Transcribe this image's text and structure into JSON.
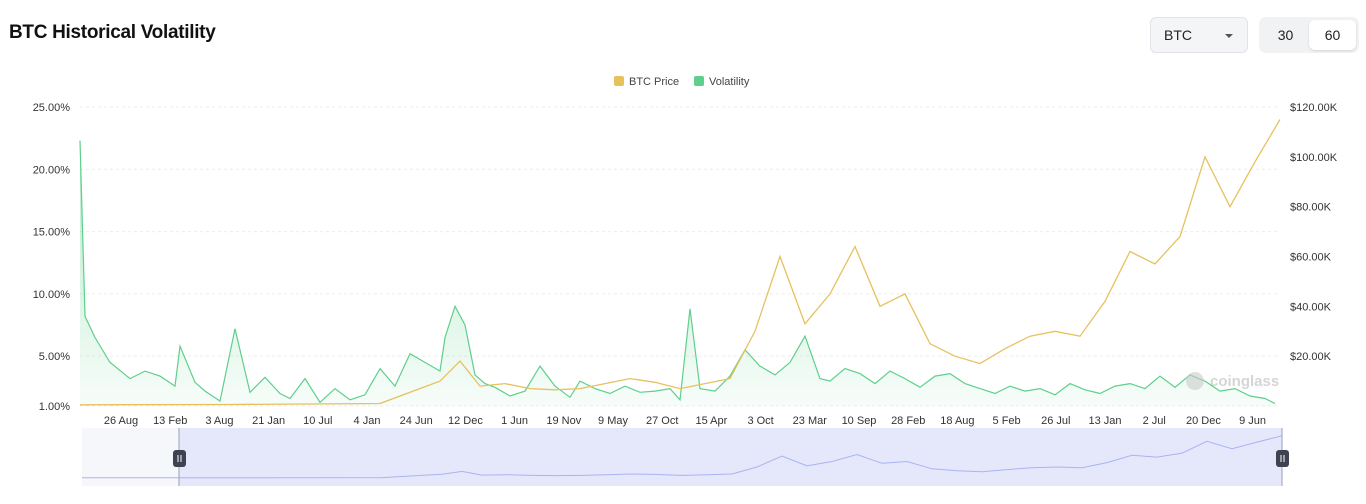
{
  "header": {
    "title": "BTC Historical Volatility",
    "coin_select": {
      "value": "BTC"
    },
    "window_options": [
      "30",
      "60"
    ],
    "window_selected": "60"
  },
  "watermark": "coinglass",
  "colors": {
    "price": "#e6c15e",
    "volatility": "#5ecf8c",
    "navigator_fill": "#dfe2fb",
    "navigator_line": "#a9b4f2"
  },
  "chart_data": {
    "type": "line",
    "title": "",
    "legend": [
      "BTC Price",
      "Volatility"
    ],
    "legend_position": "top-center",
    "grid": true,
    "x_ticks": [
      "26 Aug",
      "13 Feb",
      "3 Aug",
      "21 Jan",
      "10 Jul",
      "4 Jan",
      "24 Jun",
      "12 Dec",
      "1 Jun",
      "19 Nov",
      "9 May",
      "27 Oct",
      "15 Apr",
      "3 Oct",
      "23 Mar",
      "10 Sep",
      "28 Feb",
      "18 Aug",
      "5 Feb",
      "26 Jul",
      "13 Jan",
      "2 Jul",
      "20 Dec",
      "9 Jun"
    ],
    "y_left": {
      "ticks": [
        "1.00%",
        "5.00%",
        "10.00%",
        "15.00%",
        "20.00%",
        "25.00%"
      ],
      "range": [
        1,
        25
      ],
      "unit": "%"
    },
    "y_right": {
      "ticks": [
        "$20.00K",
        "$40.00K",
        "$60.00K",
        "$80.00K",
        "$100.00K",
        "$120.00K"
      ],
      "range": [
        0,
        120000
      ]
    },
    "series": [
      {
        "name": "Volatility",
        "axis": "left",
        "type": "area",
        "x": [
          0,
          0.1,
          0.3,
          0.6,
          1,
          1.3,
          1.6,
          1.9,
          2,
          2.3,
          2.5,
          2.8,
          3.1,
          3.4,
          3.7,
          4,
          4.2,
          4.5,
          4.8,
          5.1,
          5.4,
          5.7,
          6,
          6.3,
          6.6,
          6.9,
          7.2,
          7.3,
          7.5,
          7.7,
          7.9,
          8.1,
          8.3,
          8.6,
          8.9,
          9.2,
          9.5,
          9.8,
          10,
          10.3,
          10.6,
          10.9,
          11.2,
          11.5,
          11.8,
          12,
          12.2,
          12.4,
          12.7,
          13,
          13.3,
          13.6,
          13.9,
          14.2,
          14.5,
          14.8,
          15,
          15.3,
          15.6,
          15.9,
          16.2,
          16.5,
          16.8,
          17.1,
          17.4,
          17.7,
          18,
          18.3,
          18.6,
          18.9,
          19.2,
          19.5,
          19.8,
          20.1,
          20.4,
          20.7,
          21,
          21.3,
          21.6,
          21.9,
          22.2,
          22.5,
          22.8,
          23.1,
          23.4,
          23.7,
          23.9
        ],
        "values": [
          22.3,
          8.2,
          6.5,
          4.5,
          3.2,
          3.8,
          3.4,
          2.6,
          5.8,
          2.9,
          2.2,
          1.4,
          7.2,
          2.1,
          3.3,
          2.0,
          1.6,
          3.2,
          1.3,
          2.4,
          1.5,
          1.9,
          4.0,
          2.6,
          5.2,
          4.5,
          3.8,
          6.5,
          9.0,
          7.5,
          3.5,
          2.8,
          2.5,
          1.8,
          2.2,
          4.2,
          2.6,
          1.7,
          3.0,
          2.4,
          2.0,
          2.6,
          2.1,
          2.2,
          2.4,
          1.5,
          8.8,
          2.4,
          2.2,
          3.4,
          5.5,
          4.2,
          3.5,
          4.5,
          6.6,
          3.2,
          3.0,
          4.0,
          3.6,
          2.8,
          3.8,
          3.2,
          2.5,
          3.4,
          3.6,
          2.8,
          2.4,
          2.0,
          2.6,
          2.2,
          2.4,
          1.9,
          2.8,
          2.3,
          2.0,
          2.6,
          2.8,
          2.4,
          3.4,
          2.5,
          3.5,
          3.0,
          2.2,
          2.4,
          1.8,
          1.6,
          1.2
        ]
      },
      {
        "name": "BTC Price",
        "axis": "right",
        "type": "line",
        "x": [
          0,
          3,
          6,
          7.2,
          7.6,
          8,
          8.5,
          9,
          9.5,
          10,
          10.5,
          11,
          11.5,
          12,
          12.5,
          13,
          13.5,
          14,
          14.5,
          15,
          15.5,
          16,
          16.5,
          17,
          17.5,
          18,
          18.5,
          19,
          19.5,
          20,
          20.5,
          21,
          21.5,
          22,
          22.5,
          23,
          23.5,
          24
        ],
        "values": [
          500,
          600,
          1000,
          10000,
          18000,
          8000,
          9000,
          7000,
          6500,
          7000,
          9000,
          11000,
          9500,
          7000,
          9000,
          11000,
          30000,
          60000,
          33000,
          45000,
          64000,
          40000,
          45000,
          25000,
          20000,
          17000,
          23000,
          28000,
          30000,
          28000,
          42000,
          62000,
          57000,
          68000,
          100000,
          80000,
          98000,
          115000
        ]
      }
    ]
  }
}
